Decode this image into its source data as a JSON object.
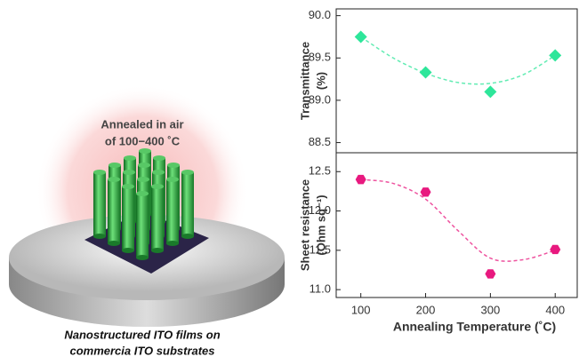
{
  "illustration": {
    "label": [
      "Annealed in air",
      "of 100−400 ˚C"
    ],
    "caption": [
      "Nanostructured ITO films on",
      "commercia ITO substrates"
    ]
  },
  "chart_data": [
    {
      "type": "scatter",
      "ylabel": [
        "Transmittance",
        "(%)"
      ],
      "x": [
        100,
        200,
        300,
        400
      ],
      "values": [
        89.75,
        89.33,
        89.1,
        89.53
      ],
      "color": "#2ee69a",
      "marker": "diamond",
      "trend": {
        "x": [
          100,
          150,
          200,
          250,
          300,
          350,
          400
        ],
        "values": [
          89.75,
          89.5,
          89.32,
          89.21,
          89.2,
          89.3,
          89.53
        ]
      },
      "xlim": [
        62,
        434
      ],
      "ylim": [
        88.38,
        90.08
      ],
      "yticks": [
        {
          "value": 88.5,
          "label": "88.5"
        },
        {
          "value": 89,
          "label": "89.0"
        },
        {
          "value": 89.5,
          "label": "89.5"
        },
        {
          "value": 90,
          "label": "90.0"
        }
      ]
    },
    {
      "type": "scatter",
      "ylabel": [
        "Sheet resistance",
        "(Ohm sq⁻¹)"
      ],
      "xlabel": "Annealing Temperature (˚C)",
      "x": [
        100,
        200,
        300,
        400
      ],
      "values": [
        12.4,
        12.24,
        11.2,
        11.51
      ],
      "color": "#e8197f",
      "marker": "hexagon",
      "trend": {
        "x": [
          100,
          150,
          200,
          250,
          300,
          350,
          400
        ],
        "values": [
          12.4,
          12.35,
          12.15,
          11.75,
          11.4,
          11.38,
          11.5
        ]
      },
      "xlim": [
        62,
        434
      ],
      "xticks": [
        100,
        200,
        300,
        400
      ],
      "ylim": [
        10.9,
        12.74
      ],
      "yticks": [
        {
          "value": 11,
          "label": "11.0"
        },
        {
          "value": 11.5,
          "label": "11.5"
        },
        {
          "value": 12,
          "label": "12.0"
        },
        {
          "value": 12.5,
          "label": "12.5"
        }
      ]
    }
  ]
}
